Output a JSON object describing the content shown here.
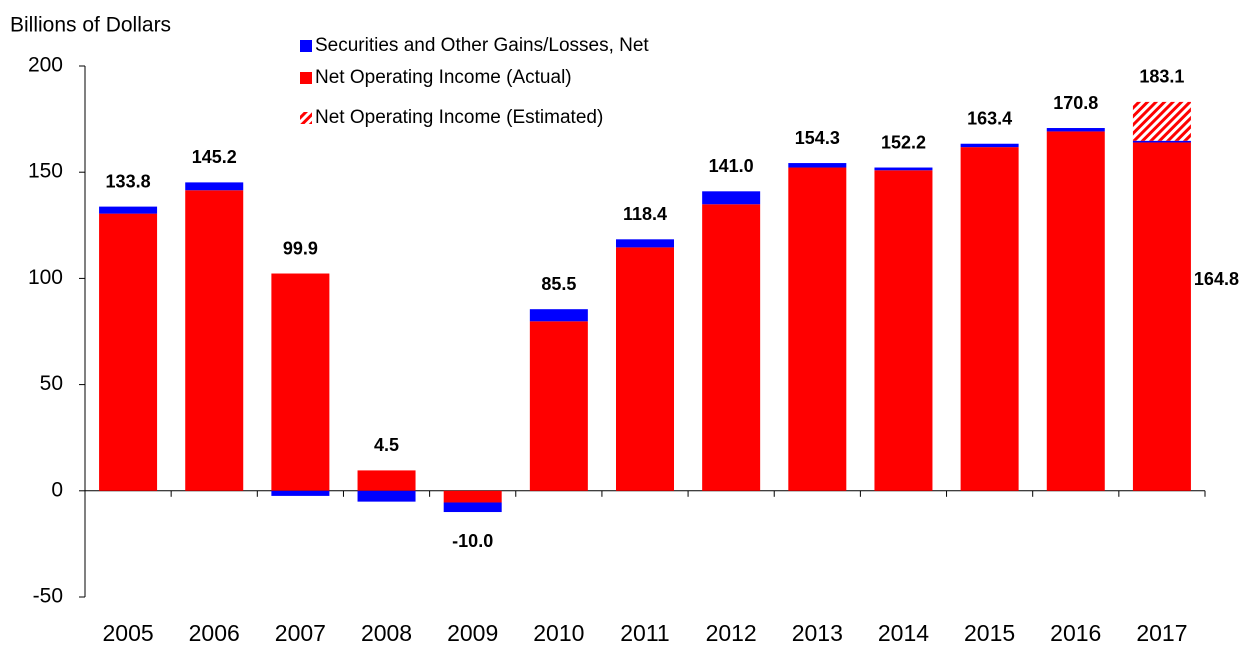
{
  "chart_data": {
    "type": "bar",
    "stacked": true,
    "y_axis_label": "Billions of Dollars",
    "categories": [
      "2005",
      "2006",
      "2007",
      "2008",
      "2009",
      "2010",
      "2011",
      "2012",
      "2013",
      "2014",
      "2015",
      "2016",
      "2017"
    ],
    "series": [
      {
        "name": "Securities and Other Gains/Losses, Net",
        "color": "#0000ff",
        "values": [
          3.3,
          3.7,
          -2.4,
          -5.1,
          -4.5,
          5.7,
          3.8,
          6.1,
          2.1,
          1.3,
          1.6,
          1.6,
          0.8
        ]
      },
      {
        "name": "Net Operating Income (Actual)",
        "color": "#ff0000",
        "values": [
          130.5,
          141.5,
          102.3,
          9.6,
          -5.5,
          79.8,
          114.6,
          134.9,
          152.2,
          150.9,
          161.8,
          169.2,
          164.0
        ]
      },
      {
        "name": "Net Operating Income (Estimated)",
        "color": "#ff0000",
        "pattern": "hatch",
        "values": [
          null,
          null,
          null,
          null,
          null,
          null,
          null,
          null,
          null,
          null,
          null,
          null,
          18.3
        ]
      }
    ],
    "totals": [
      133.8,
      145.2,
      99.9,
      4.5,
      -10.0,
      85.5,
      118.4,
      141.0,
      154.3,
      152.2,
      163.4,
      170.8,
      183.1
    ],
    "total_labels": [
      "133.8",
      "145.2",
      "99.9",
      "4.5",
      "-10.0",
      "85.5",
      "118.4",
      "141.0",
      "154.3",
      "152.2",
      "163.4",
      "170.8",
      "183.1"
    ],
    "annotation": {
      "value": 164.8,
      "label": "164.8"
    },
    "ylim": [
      -50,
      200
    ],
    "yticks": [
      -50,
      0,
      50,
      100,
      150,
      200
    ],
    "grid": false
  }
}
